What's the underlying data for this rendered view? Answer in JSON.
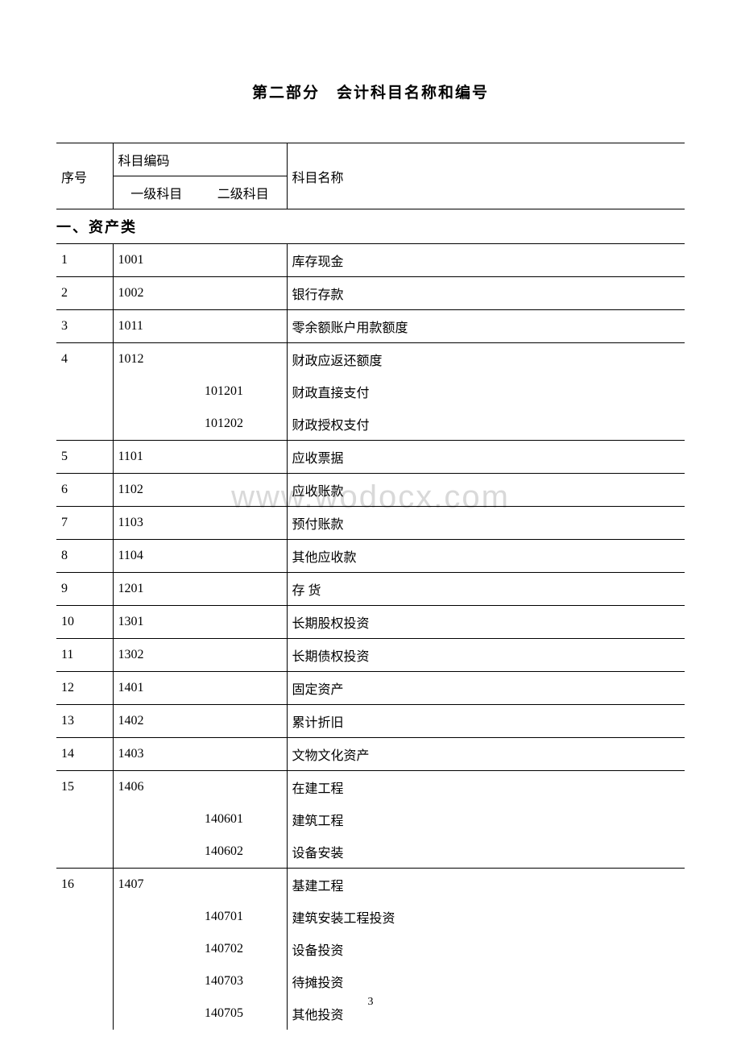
{
  "title": "第二部分　会计科目名称和编号",
  "watermark": "www.wodocx.com",
  "page_number": "3",
  "table": {
    "headers": {
      "seq": "序号",
      "code_group": "科目编码",
      "code1": "一级科目",
      "code2": "二级科目",
      "name": "科目名称"
    },
    "section_label": "一、资产类",
    "rows": [
      {
        "seq": "1",
        "code1": "1001",
        "code2": "",
        "name": "库存现金",
        "indent": false,
        "last_in_group": true
      },
      {
        "seq": "2",
        "code1": "1002",
        "code2": "",
        "name": "银行存款",
        "indent": false,
        "last_in_group": true
      },
      {
        "seq": "3",
        "code1": "1011",
        "code2": "",
        "name": "零余额账户用款额度",
        "indent": false,
        "last_in_group": true
      },
      {
        "seq": "4",
        "code1": "1012",
        "code2": "",
        "name": "财政应返还额度",
        "indent": false,
        "last_in_group": false
      },
      {
        "seq": "",
        "code1": "",
        "code2": "101201",
        "name": "财政直接支付",
        "indent": true,
        "last_in_group": false
      },
      {
        "seq": "",
        "code1": "",
        "code2": "101202",
        "name": "财政授权支付",
        "indent": true,
        "last_in_group": true
      },
      {
        "seq": "5",
        "code1": "1101",
        "code2": "",
        "name": "应收票据",
        "indent": false,
        "last_in_group": true
      },
      {
        "seq": "6",
        "code1": "1102",
        "code2": "",
        "name": "应收账款",
        "indent": false,
        "last_in_group": true
      },
      {
        "seq": "7",
        "code1": "1103",
        "code2": "",
        "name": "预付账款",
        "indent": false,
        "last_in_group": true
      },
      {
        "seq": "8",
        "code1": "1104",
        "code2": "",
        "name": "其他应收款",
        "indent": false,
        "last_in_group": true
      },
      {
        "seq": "9",
        "code1": "1201",
        "code2": "",
        "name": "存 货",
        "indent": false,
        "last_in_group": true
      },
      {
        "seq": "10",
        "code1": "1301",
        "code2": "",
        "name": "长期股权投资",
        "indent": false,
        "last_in_group": true
      },
      {
        "seq": "11",
        "code1": "1302",
        "code2": "",
        "name": "长期债权投资",
        "indent": false,
        "last_in_group": true
      },
      {
        "seq": "12",
        "code1": "1401",
        "code2": "",
        "name": "固定资产",
        "indent": false,
        "last_in_group": true
      },
      {
        "seq": "13",
        "code1": "1402",
        "code2": "",
        "name": "累计折旧",
        "indent": false,
        "last_in_group": true
      },
      {
        "seq": "14",
        "code1": "1403",
        "code2": "",
        "name": "文物文化资产",
        "indent": false,
        "last_in_group": true
      },
      {
        "seq": "15",
        "code1": "1406",
        "code2": "",
        "name": "在建工程",
        "indent": false,
        "last_in_group": false
      },
      {
        "seq": "",
        "code1": "",
        "code2": "140601",
        "name": "建筑工程",
        "indent": true,
        "last_in_group": false
      },
      {
        "seq": "",
        "code1": "",
        "code2": "140602",
        "name": "设备安装",
        "indent": true,
        "last_in_group": true
      },
      {
        "seq": "16",
        "code1": "1407",
        "code2": "",
        "name": "基建工程",
        "indent": false,
        "last_in_group": false
      },
      {
        "seq": "",
        "code1": "",
        "code2": "140701",
        "name": "建筑安装工程投资",
        "indent": true,
        "last_in_group": false
      },
      {
        "seq": "",
        "code1": "",
        "code2": "140702",
        "name": "设备投资",
        "indent": true,
        "last_in_group": false
      },
      {
        "seq": "",
        "code1": "",
        "code2": "140703",
        "name": "待摊投资",
        "indent": true,
        "last_in_group": false
      },
      {
        "seq": "",
        "code1": "",
        "code2": "140705",
        "name": "其他投资",
        "indent": true,
        "last_in_group": false
      }
    ],
    "columns": {
      "seq_width": 70,
      "code1_width": 108,
      "code2_width": 108
    },
    "colors": {
      "border": "#000000",
      "background": "#ffffff",
      "watermark": "#d9d9d9"
    },
    "fonts": {
      "body_size_pt": 12,
      "title_size_pt": 14,
      "section_size_pt": 13
    }
  }
}
